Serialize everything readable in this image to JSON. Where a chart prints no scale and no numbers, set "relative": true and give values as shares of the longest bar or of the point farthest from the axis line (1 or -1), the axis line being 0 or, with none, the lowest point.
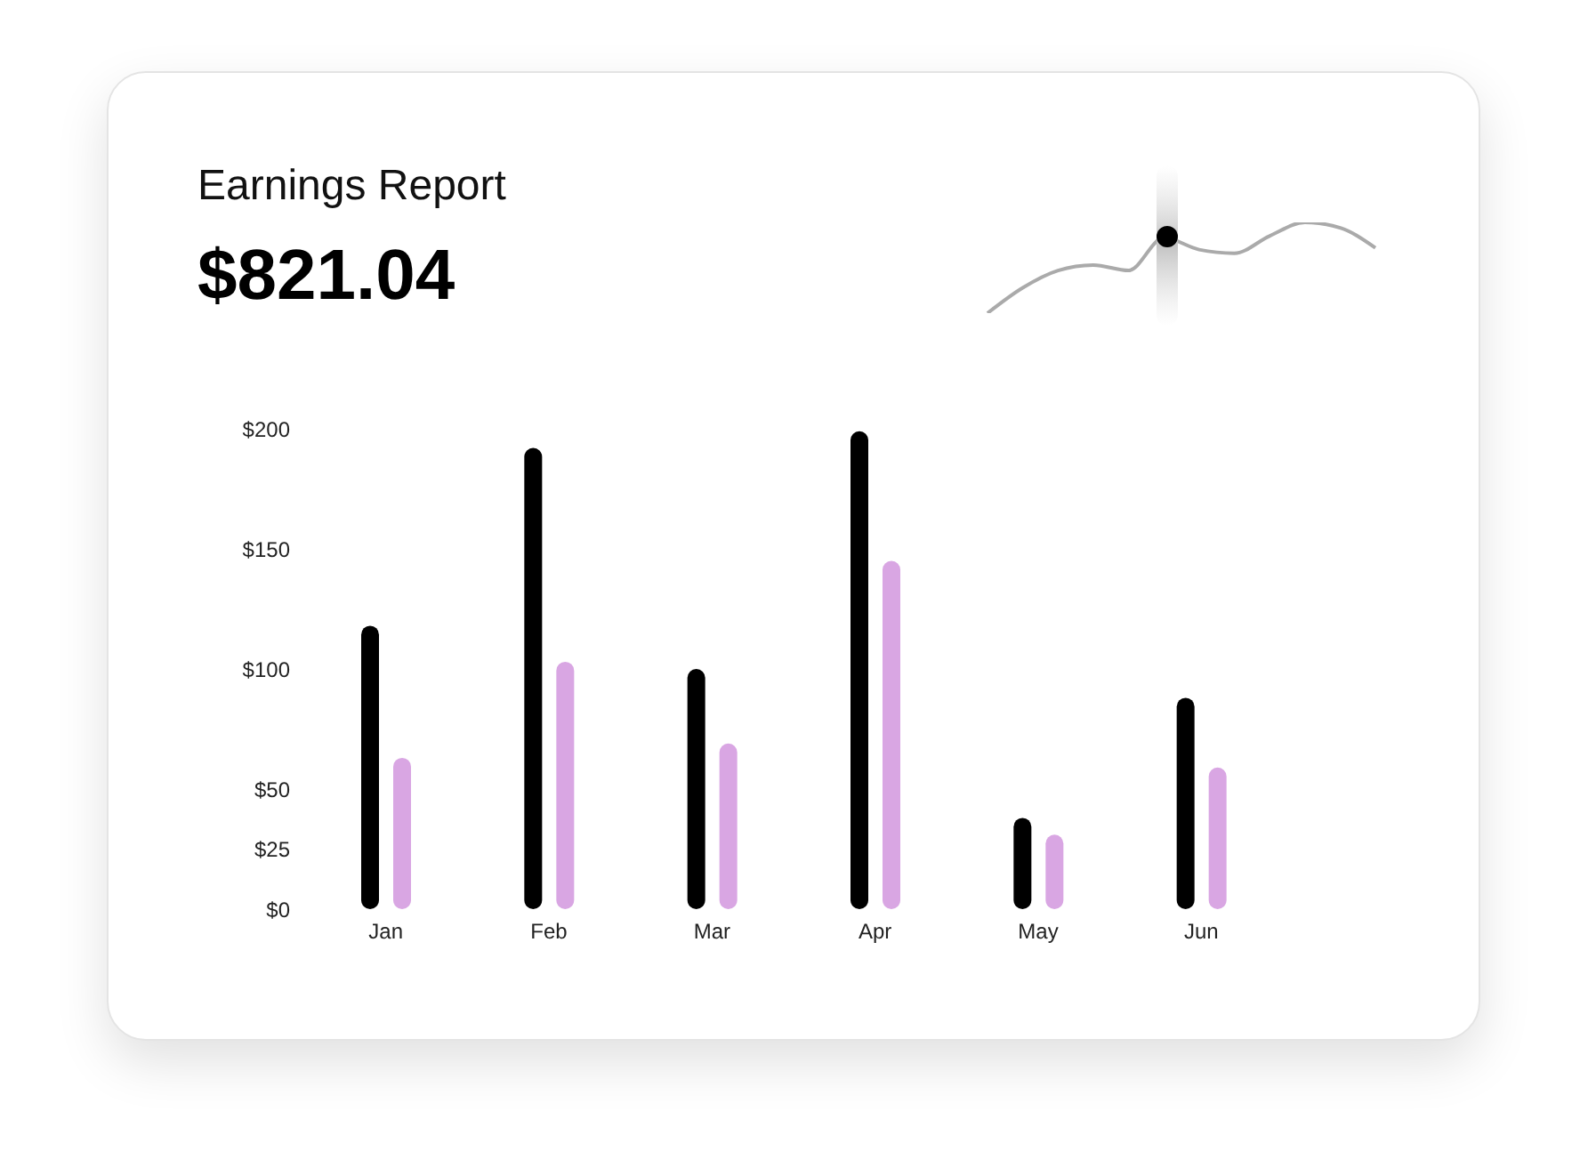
{
  "chart_data": [
    {
      "type": "other",
      "title": "Earnings Report",
      "subtitle": "$821.04"
    },
    {
      "type": "line",
      "relative": true,
      "categories": [
        null,
        null,
        null,
        null,
        null,
        null,
        null,
        null,
        null,
        null,
        null,
        null
      ],
      "series": [
        {
          "color": "#aaaaaa",
          "values": [
            0,
            0.28,
            0.47,
            0.53,
            0.47,
            0.83,
            0.7,
            0.66,
            0.85,
            1,
            0.94,
            0.72
          ]
        }
      ]
    },
    {
      "type": "bar",
      "categories": [
        "Jan",
        "Feb",
        "Mar",
        "Apr",
        "May",
        "Jun"
      ],
      "series": [
        {
          "color": "#000000",
          "values": [
            118,
            192,
            100,
            199,
            38,
            88
          ]
        },
        {
          "color": "#d9a6e3",
          "values": [
            63,
            103,
            69,
            145,
            31,
            59
          ]
        }
      ],
      "ylim": [
        0,
        200
      ],
      "yticks": [
        {
          "value": 0,
          "label": "$0"
        },
        {
          "value": 25,
          "label": "$25"
        },
        {
          "value": 50,
          "label": "$50"
        },
        {
          "value": 100,
          "label": "$100"
        },
        {
          "value": 150,
          "label": "$150"
        },
        {
          "value": 200,
          "label": "$200"
        }
      ]
    }
  ]
}
